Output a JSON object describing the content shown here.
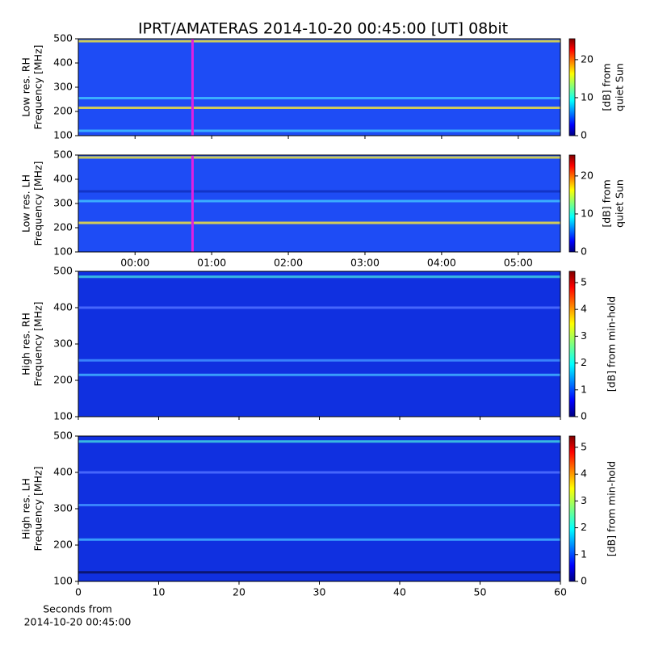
{
  "title": "IPRT/AMATERAS 2014-10-20 00:45:00 [UT]   08bit",
  "chart_data": [
    {
      "type": "spectrogram",
      "ylabel": [
        "Low res. RH",
        "Frequency [MHz]"
      ],
      "ylim": [
        100,
        500
      ],
      "yticks": [
        100,
        200,
        300,
        400,
        500
      ],
      "xlim": [
        -0.74,
        5.55
      ],
      "xticks": [
        0,
        1,
        2,
        3,
        4,
        5
      ],
      "show_xticklabels": false,
      "marker_x": 0.75,
      "marker_color": "#e020e0",
      "background": "#1e4cf5",
      "bands": [
        {
          "freq": 215,
          "color": "#f0e040"
        },
        {
          "freq": 490,
          "color": "#e8e040"
        },
        {
          "freq": 120,
          "color": "#40c0ff"
        },
        {
          "freq": 255,
          "color": "#40c0ff"
        }
      ],
      "clim": [
        0,
        25.5
      ],
      "cticks": [
        0,
        10,
        20
      ],
      "clabel": [
        "[dB] from",
        "quiet Sun"
      ]
    },
    {
      "type": "spectrogram",
      "ylabel": [
        "Low res. LH",
        "Frequency [MHz]"
      ],
      "ylim": [
        100,
        500
      ],
      "yticks": [
        100,
        200,
        300,
        400,
        500
      ],
      "xlim": [
        -0.74,
        5.55
      ],
      "xticks": [
        {
          "value": 0,
          "label": "00:00"
        },
        {
          "value": 1,
          "label": "01:00"
        },
        {
          "value": 2,
          "label": "02:00"
        },
        {
          "value": 3,
          "label": "03:00"
        },
        {
          "value": 4,
          "label": "04:00"
        },
        {
          "value": 5,
          "label": "05:00"
        }
      ],
      "show_xticklabels": true,
      "marker_x": 0.75,
      "marker_color": "#e020e0",
      "background": "#1e4cf5",
      "bands": [
        {
          "freq": 220,
          "color": "#f0e040"
        },
        {
          "freq": 490,
          "color": "#e8e040"
        },
        {
          "freq": 350,
          "color": "#1030c0"
        },
        {
          "freq": 310,
          "color": "#40c0ff"
        }
      ],
      "clim": [
        0,
        25.5
      ],
      "cticks": [
        0,
        10,
        20
      ],
      "clabel": [
        "[dB] from",
        "quiet Sun"
      ]
    },
    {
      "type": "spectrogram",
      "ylabel": [
        "High res. RH",
        "Frequency [MHz]"
      ],
      "ylim": [
        100,
        500
      ],
      "yticks": [
        100,
        200,
        300,
        400,
        500
      ],
      "xlim": [
        0,
        60
      ],
      "xticks": [
        0,
        10,
        20,
        30,
        40,
        50,
        60
      ],
      "show_xticklabels": false,
      "background": "#1030e0",
      "bands": [
        {
          "freq": 485,
          "color": "#40d0e0"
        },
        {
          "freq": 215,
          "color": "#40b0ff"
        },
        {
          "freq": 255,
          "color": "#4090ff"
        },
        {
          "freq": 400,
          "color": "#5070ff"
        }
      ],
      "clim": [
        0,
        5.42
      ],
      "cticks": [
        0,
        1,
        2,
        3,
        4,
        5
      ],
      "clabel": [
        "[dB] from min-hold"
      ]
    },
    {
      "type": "spectrogram",
      "ylabel": [
        "High res. LH",
        "Frequency [MHz]"
      ],
      "ylim": [
        100,
        500
      ],
      "yticks": [
        100,
        200,
        300,
        400,
        500
      ],
      "xlim": [
        0,
        60
      ],
      "xticks": [
        0,
        10,
        20,
        30,
        40,
        50,
        60
      ],
      "show_xticklabels": true,
      "xlabel": [
        "Seconds from",
        "2014-10-20 00:45:00"
      ],
      "background": "#1030e0",
      "bands": [
        {
          "freq": 485,
          "color": "#40d0e0"
        },
        {
          "freq": 215,
          "color": "#40b0ff"
        },
        {
          "freq": 310,
          "color": "#4090ff"
        },
        {
          "freq": 400,
          "color": "#5070ff"
        },
        {
          "freq": 125,
          "color": "#0a1060"
        }
      ],
      "clim": [
        0,
        5.42
      ],
      "cticks": [
        0,
        1,
        2,
        3,
        4,
        5
      ],
      "clabel": [
        "[dB] from min-hold"
      ]
    }
  ]
}
